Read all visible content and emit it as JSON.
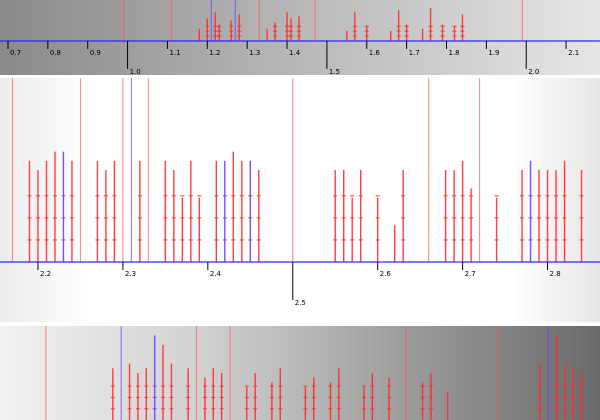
{
  "chart_data": [
    {
      "type": "bar",
      "x_ticks": [
        "0.7",
        "0.8",
        "0.9",
        "1.0",
        "1.1",
        "1.2",
        "1.3",
        "1.4",
        "1.5",
        "1.6",
        "1.7",
        "1.8",
        "1.9",
        "2.0",
        "2.1"
      ],
      "xlim": [
        0.69,
        2.16
      ],
      "tick_values": [
        0.7,
        0.8,
        0.9,
        1.0,
        1.1,
        1.2,
        1.3,
        1.4,
        1.5,
        1.6,
        1.7,
        1.8,
        1.9,
        2.0,
        2.1
      ],
      "long_ticks": [
        1.0,
        1.5,
        2.0
      ],
      "title": "",
      "xlabel": "",
      "ylabel": "",
      "marks": [
        {
          "x": 0.99,
          "color": "#ff5a5a",
          "h": 1.0
        },
        {
          "x": 1.11,
          "color": "#ff5a5a",
          "h": 1.0
        },
        {
          "x": 1.18,
          "color": "#ff2a2a",
          "h": 0.3
        },
        {
          "x": 1.2,
          "color": "#ff2a2a",
          "h": 0.55
        },
        {
          "x": 1.21,
          "color": "#6a3cff",
          "h": 1.0
        },
        {
          "x": 1.22,
          "color": "#ff2a2a",
          "h": 0.7
        },
        {
          "x": 1.23,
          "color": "#ff2a2a",
          "h": 0.4
        },
        {
          "x": 1.26,
          "color": "#ff2a2a",
          "h": 0.5
        },
        {
          "x": 1.27,
          "color": "#6a3cff",
          "h": 1.0
        },
        {
          "x": 1.28,
          "color": "#ff2a2a",
          "h": 0.65
        },
        {
          "x": 1.33,
          "color": "#ff5a5a",
          "h": 1.0
        },
        {
          "x": 1.35,
          "color": "#ff2a2a",
          "h": 0.3
        },
        {
          "x": 1.37,
          "color": "#ff2a2a",
          "h": 0.45
        },
        {
          "x": 1.4,
          "color": "#ff2a2a",
          "h": 0.7
        },
        {
          "x": 1.41,
          "color": "#ff2a2a",
          "h": 0.55
        },
        {
          "x": 1.43,
          "color": "#ff2a2a",
          "h": 0.6
        },
        {
          "x": 1.47,
          "color": "#ff5a5a",
          "h": 1.0
        },
        {
          "x": 1.55,
          "color": "#ff2a2a",
          "h": 0.25
        },
        {
          "x": 1.57,
          "color": "#ff2a2a",
          "h": 0.7
        },
        {
          "x": 1.6,
          "color": "#ff2a2a",
          "h": 0.35
        },
        {
          "x": 1.66,
          "color": "#ff2a2a",
          "h": 0.25
        },
        {
          "x": 1.68,
          "color": "#ff2a2a",
          "h": 0.75
        },
        {
          "x": 1.7,
          "color": "#ff2a2a",
          "h": 0.4
        },
        {
          "x": 1.74,
          "color": "#ff2a2a",
          "h": 0.3
        },
        {
          "x": 1.76,
          "color": "#ff2a2a",
          "h": 0.8
        },
        {
          "x": 1.79,
          "color": "#ff2a2a",
          "h": 0.4
        },
        {
          "x": 1.82,
          "color": "#ff2a2a",
          "h": 0.35
        },
        {
          "x": 1.84,
          "color": "#ff2a2a",
          "h": 0.65
        },
        {
          "x": 1.99,
          "color": "#ff5a5a",
          "h": 1.0
        }
      ]
    },
    {
      "type": "bar",
      "x_ticks": [
        "2.2",
        "2.3",
        "2.4",
        "2.5",
        "2.6",
        "2.7",
        "2.8"
      ],
      "xlim": [
        2.16,
        2.85
      ],
      "tick_values": [
        2.2,
        2.3,
        2.4,
        2.5,
        2.6,
        2.7,
        2.8
      ],
      "long_ticks": [
        2.5
      ],
      "title": "",
      "xlabel": "",
      "ylabel": "",
      "marks": [
        {
          "x": 2.17,
          "color": "#ff5a5a",
          "h": 1.0
        },
        {
          "x": 2.19,
          "color": "#ff2a2a",
          "h": 0.55
        },
        {
          "x": 2.2,
          "color": "#ff2a2a",
          "h": 0.5
        },
        {
          "x": 2.21,
          "color": "#ff2a2a",
          "h": 0.55
        },
        {
          "x": 2.22,
          "color": "#ff2a2a",
          "h": 0.6
        },
        {
          "x": 2.23,
          "color": "#6a3cff",
          "h": 0.6
        },
        {
          "x": 2.24,
          "color": "#ff2a2a",
          "h": 0.55
        },
        {
          "x": 2.25,
          "color": "#ff5a5a",
          "h": 1.0
        },
        {
          "x": 2.27,
          "color": "#ff2a2a",
          "h": 0.55
        },
        {
          "x": 2.28,
          "color": "#ff2a2a",
          "h": 0.5
        },
        {
          "x": 2.29,
          "color": "#ff2a2a",
          "h": 0.55
        },
        {
          "x": 2.3,
          "color": "#ff5a5a",
          "h": 1.0
        },
        {
          "x": 2.31,
          "color": "#6a3cff",
          "h": 1.0
        },
        {
          "x": 2.32,
          "color": "#ff2a2a",
          "h": 0.55
        },
        {
          "x": 2.33,
          "color": "#ff5a5a",
          "h": 1.0
        },
        {
          "x": 2.35,
          "color": "#ff2a2a",
          "h": 0.55
        },
        {
          "x": 2.36,
          "color": "#ff2a2a",
          "h": 0.5
        },
        {
          "x": 2.37,
          "color": "#ff2a2a",
          "h": 0.35
        },
        {
          "x": 2.38,
          "color": "#ff2a2a",
          "h": 0.55
        },
        {
          "x": 2.39,
          "color": "#ff2a2a",
          "h": 0.35
        },
        {
          "x": 2.41,
          "color": "#ff2a2a",
          "h": 0.55
        },
        {
          "x": 2.42,
          "color": "#6a3cff",
          "h": 0.55
        },
        {
          "x": 2.43,
          "color": "#ff2a2a",
          "h": 0.6
        },
        {
          "x": 2.44,
          "color": "#ff2a2a",
          "h": 0.55
        },
        {
          "x": 2.45,
          "color": "#6a3cff",
          "h": 0.55
        },
        {
          "x": 2.46,
          "color": "#ff2a2a",
          "h": 0.5
        },
        {
          "x": 2.5,
          "color": "#ff5a5a",
          "h": 1.0
        },
        {
          "x": 2.55,
          "color": "#ff2a2a",
          "h": 0.5
        },
        {
          "x": 2.56,
          "color": "#ff2a2a",
          "h": 0.5
        },
        {
          "x": 2.57,
          "color": "#ff2a2a",
          "h": 0.35
        },
        {
          "x": 2.58,
          "color": "#ff2a2a",
          "h": 0.5
        },
        {
          "x": 2.6,
          "color": "#ff2a2a",
          "h": 0.35
        },
        {
          "x": 2.62,
          "color": "#ff2a2a",
          "h": 0.2
        },
        {
          "x": 2.63,
          "color": "#ff2a2a",
          "h": 0.5
        },
        {
          "x": 2.66,
          "color": "#ff5a5a",
          "h": 1.0
        },
        {
          "x": 2.68,
          "color": "#ff2a2a",
          "h": 0.5
        },
        {
          "x": 2.69,
          "color": "#ff2a2a",
          "h": 0.5
        },
        {
          "x": 2.7,
          "color": "#ff2a2a",
          "h": 0.55
        },
        {
          "x": 2.71,
          "color": "#ff2a2a",
          "h": 0.4
        },
        {
          "x": 2.72,
          "color": "#ff5a5a",
          "h": 1.0
        },
        {
          "x": 2.74,
          "color": "#ff2a2a",
          "h": 0.35
        },
        {
          "x": 2.77,
          "color": "#ff2a2a",
          "h": 0.5
        },
        {
          "x": 2.78,
          "color": "#6a3cff",
          "h": 0.55
        },
        {
          "x": 2.79,
          "color": "#ff2a2a",
          "h": 0.5
        },
        {
          "x": 2.8,
          "color": "#ff2a2a",
          "h": 0.5
        },
        {
          "x": 2.81,
          "color": "#ff2a2a",
          "h": 0.5
        },
        {
          "x": 2.82,
          "color": "#ff2a2a",
          "h": 0.55
        },
        {
          "x": 2.84,
          "color": "#ff2a2a",
          "h": 0.5
        }
      ]
    },
    {
      "type": "bar",
      "x_ticks": [],
      "xlim": [
        2.85,
        3.55
      ],
      "tick_values": [],
      "long_ticks": [],
      "title": "",
      "xlabel": "",
      "ylabel": "",
      "marks": [
        {
          "x": 2.9,
          "color": "#ff5a5a",
          "h": 1.0
        },
        {
          "x": 2.98,
          "color": "#ff2a2a",
          "h": 0.55
        },
        {
          "x": 2.99,
          "color": "#6a3cff",
          "h": 1.0
        },
        {
          "x": 3.0,
          "color": "#ff2a2a",
          "h": 0.6
        },
        {
          "x": 3.01,
          "color": "#ff2a2a",
          "h": 0.5
        },
        {
          "x": 3.02,
          "color": "#ff2a2a",
          "h": 0.55
        },
        {
          "x": 3.03,
          "color": "#6a3cff",
          "h": 0.9
        },
        {
          "x": 3.04,
          "color": "#ff2a2a",
          "h": 0.8
        },
        {
          "x": 3.05,
          "color": "#ff2a2a",
          "h": 0.6
        },
        {
          "x": 3.07,
          "color": "#ff2a2a",
          "h": 0.55
        },
        {
          "x": 3.08,
          "color": "#ff5a5a",
          "h": 1.0
        },
        {
          "x": 3.09,
          "color": "#ff2a2a",
          "h": 0.45
        },
        {
          "x": 3.1,
          "color": "#ff2a2a",
          "h": 0.55
        },
        {
          "x": 3.11,
          "color": "#ff2a2a",
          "h": 0.5
        },
        {
          "x": 3.12,
          "color": "#ff5a5a",
          "h": 1.0
        },
        {
          "x": 3.14,
          "color": "#ff2a2a",
          "h": 0.35
        },
        {
          "x": 3.15,
          "color": "#ff2a2a",
          "h": 0.5
        },
        {
          "x": 3.17,
          "color": "#ff2a2a",
          "h": 0.4
        },
        {
          "x": 3.18,
          "color": "#ff2a2a",
          "h": 0.55
        },
        {
          "x": 3.21,
          "color": "#ff2a2a",
          "h": 0.35
        },
        {
          "x": 3.22,
          "color": "#ff2a2a",
          "h": 0.45
        },
        {
          "x": 3.24,
          "color": "#ff2a2a",
          "h": 0.4
        },
        {
          "x": 3.25,
          "color": "#ff2a2a",
          "h": 0.55
        },
        {
          "x": 3.28,
          "color": "#ff2a2a",
          "h": 0.35
        },
        {
          "x": 3.29,
          "color": "#ff2a2a",
          "h": 0.5
        },
        {
          "x": 3.31,
          "color": "#ff2a2a",
          "h": 0.45
        },
        {
          "x": 3.33,
          "color": "#ff5a5a",
          "h": 1.0
        },
        {
          "x": 3.35,
          "color": "#ff2a2a",
          "h": 0.4
        },
        {
          "x": 3.36,
          "color": "#ff2a2a",
          "h": 0.5
        },
        {
          "x": 3.38,
          "color": "#ff2a2a",
          "h": 0.3
        },
        {
          "x": 3.44,
          "color": "#ff5a5a",
          "h": 1.0
        },
        {
          "x": 3.49,
          "color": "#ff2a2a",
          "h": 0.6
        },
        {
          "x": 3.5,
          "color": "#6a3cff",
          "h": 1.0
        },
        {
          "x": 3.51,
          "color": "#ff2a2a",
          "h": 0.9
        },
        {
          "x": 3.52,
          "color": "#ff2a2a",
          "h": 0.6
        },
        {
          "x": 3.53,
          "color": "#ff2a2a",
          "h": 0.55
        },
        {
          "x": 3.54,
          "color": "#ff2a2a",
          "h": 0.5
        }
      ]
    }
  ]
}
